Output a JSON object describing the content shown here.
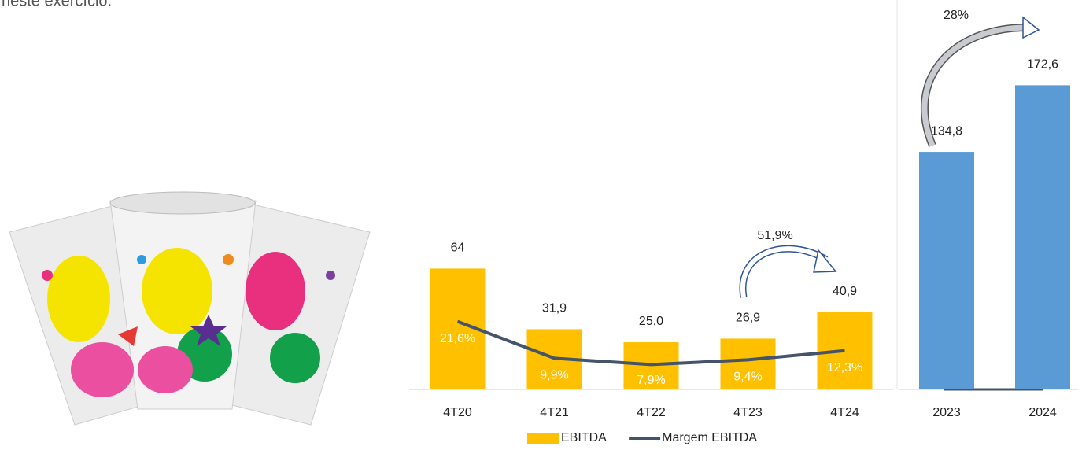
{
  "caption": "neste exercício.",
  "chart_data": [
    {
      "type": "bar",
      "categories": [
        "4T20",
        "4T21",
        "4T22",
        "4T23",
        "4T24"
      ],
      "series": [
        {
          "name": "EBITDA",
          "color": "#FFC000",
          "values": [
            64,
            31.9,
            25.0,
            26.9,
            40.9
          ],
          "value_labels": [
            "64",
            "31,9",
            "25,0",
            "26,9",
            "40,9"
          ]
        },
        {
          "name": "Margem EBITDA",
          "color": "#44546A",
          "type": "line",
          "axis": "y2",
          "values": [
            21.6,
            9.9,
            7.9,
            9.4,
            12.3
          ],
          "value_labels": [
            "21,6%",
            "9,9%",
            "7,9%",
            "9,4%",
            "12,3%"
          ]
        }
      ],
      "ylim": [
        0,
        70
      ],
      "y2lim": [
        0,
        42
      ],
      "annotation": "51,9%",
      "legend": "bottom"
    },
    {
      "type": "bar",
      "categories": [
        "2023",
        "2024"
      ],
      "series": [
        {
          "color": "#5B9BD5",
          "values": [
            134.8,
            172.6
          ],
          "value_labels": [
            "134,8",
            "172,6"
          ]
        }
      ],
      "ylim": [
        0,
        200
      ],
      "annotation": "28%"
    }
  ]
}
